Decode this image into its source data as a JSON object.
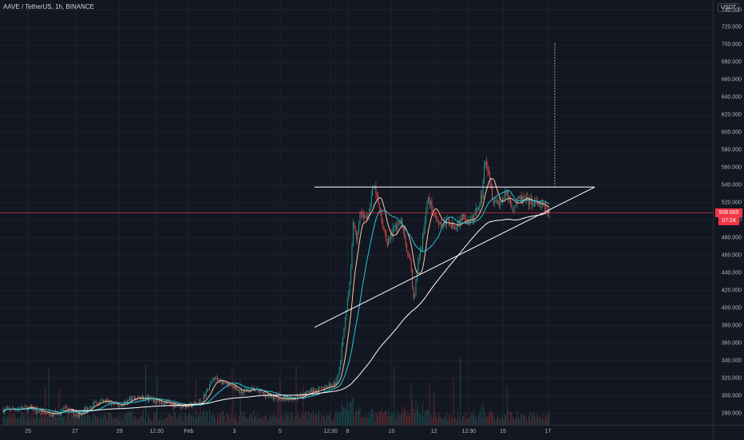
{
  "header": {
    "symbol_title": "AAVE / TetherUS, 1h, BINANCE"
  },
  "price_axis": {
    "currency": "USDT",
    "labels": [
      "740.000",
      "720.000",
      "700.000",
      "680.000",
      "660.000",
      "640.000",
      "620.000",
      "600.000",
      "580.000",
      "560.000",
      "540.000",
      "520.000",
      "500.000",
      "480.000",
      "460.000",
      "440.000",
      "420.000",
      "400.000",
      "380.000",
      "360.000",
      "340.000",
      "320.000",
      "300.000",
      "280.000"
    ],
    "last_price": "508.669",
    "countdown": "07:24"
  },
  "time_axis": {
    "labels": [
      "25",
      "27",
      "29",
      "12:30",
      "Feb",
      "3",
      "5",
      "12:30",
      "8",
      "10",
      "12",
      "12:30",
      "15",
      "17"
    ]
  },
  "colors": {
    "background": "#131722",
    "candle_up": "#26a69a",
    "candle_down": "#ef5350",
    "ma_fast": "#f7c6a3",
    "ma_slow": "#26c6da",
    "ma_long": "#ffffff",
    "last_price": "#f23645"
  },
  "chart_data": {
    "type": "candlestick",
    "title": "AAVE / TetherUS, 1h, BINANCE",
    "ylim": [
      272,
      748
    ],
    "y_ticks": [
      280,
      300,
      320,
      340,
      360,
      380,
      400,
      420,
      440,
      460,
      480,
      500,
      520,
      540,
      560,
      580,
      600,
      620,
      640,
      660,
      680,
      700,
      720,
      740
    ],
    "x_ticks": [
      "25",
      "27",
      "29",
      "12:30",
      "Feb",
      "3",
      "5",
      "12:30",
      "8",
      "10",
      "12",
      "12:30",
      "15",
      "17"
    ],
    "last_price": 508.669,
    "close_path": [
      [
        0,
        284
      ],
      [
        4,
        286
      ],
      [
        7,
        278
      ],
      [
        9,
        285
      ],
      [
        11,
        278
      ],
      [
        13,
        290
      ],
      [
        15,
        294
      ],
      [
        17,
        288
      ],
      [
        19,
        298
      ],
      [
        21,
        297
      ],
      [
        23,
        293
      ],
      [
        25,
        290
      ],
      [
        27,
        288
      ],
      [
        29,
        292
      ],
      [
        31,
        320
      ],
      [
        33,
        312
      ],
      [
        35,
        305
      ],
      [
        37,
        307
      ],
      [
        39,
        300
      ],
      [
        41,
        296
      ],
      [
        43,
        298
      ],
      [
        45,
        304
      ],
      [
        47,
        308
      ],
      [
        49,
        315
      ],
      [
        49.6,
        340
      ],
      [
        50.2,
        385
      ],
      [
        51,
        430
      ],
      [
        51.5,
        500
      ],
      [
        52,
        480
      ],
      [
        52.5,
        510
      ],
      [
        53.5,
        500
      ],
      [
        54.5,
        540
      ],
      [
        55,
        525
      ],
      [
        55.5,
        505
      ],
      [
        56.5,
        475
      ],
      [
        57.5,
        490
      ],
      [
        58.5,
        500
      ],
      [
        59.3,
        470
      ],
      [
        60,
        445
      ],
      [
        60.4,
        405
      ],
      [
        61,
        455
      ],
      [
        61.5,
        470
      ],
      [
        62,
        500
      ],
      [
        62.5,
        525
      ],
      [
        63.5,
        505
      ],
      [
        64.5,
        495
      ],
      [
        65.5,
        500
      ],
      [
        66.5,
        490
      ],
      [
        67.5,
        505
      ],
      [
        68.5,
        495
      ],
      [
        69.5,
        510
      ],
      [
        70.5,
        530
      ],
      [
        70.8,
        575
      ],
      [
        71.3,
        560
      ],
      [
        72,
        525
      ],
      [
        73,
        520
      ],
      [
        74,
        530
      ],
      [
        75,
        515
      ],
      [
        76,
        525
      ],
      [
        77,
        522
      ],
      [
        78,
        520
      ],
      [
        79,
        518
      ],
      [
        79.8,
        512
      ],
      [
        80.3,
        508.669
      ]
    ],
    "annotations": {
      "resistance_line": 538,
      "target_line": [
        538,
        703
      ]
    }
  }
}
